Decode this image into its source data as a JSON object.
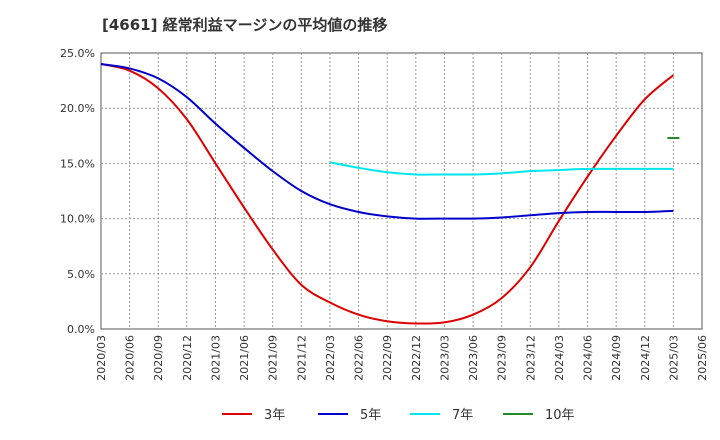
{
  "title": "[4661]  経常利益マージンの平均値の推移",
  "chart_data": {
    "type": "line",
    "title": "[4661]  経常利益マージンの平均値の推移",
    "xlabel": "",
    "ylabel": "",
    "ylim": [
      0,
      25
    ],
    "grid": true,
    "legend_position": "bottom",
    "x": [
      "2020/03",
      "2020/06",
      "2020/09",
      "2020/12",
      "2021/03",
      "2021/06",
      "2021/09",
      "2021/12",
      "2022/03",
      "2022/06",
      "2022/09",
      "2022/12",
      "2023/03",
      "2023/06",
      "2023/09",
      "2023/12",
      "2024/03",
      "2024/06",
      "2024/09",
      "2024/12",
      "2025/03",
      "2025/06"
    ],
    "y_ticks": [
      "0.0%",
      "5.0%",
      "10.0%",
      "15.0%",
      "20.0%",
      "25.0%"
    ],
    "series": [
      {
        "name": "3年",
        "color": "#dd0000",
        "values": [
          24.0,
          23.4,
          21.8,
          19.0,
          15.0,
          11.0,
          7.2,
          4.0,
          2.4,
          1.3,
          0.7,
          0.5,
          0.6,
          1.3,
          2.8,
          5.6,
          9.8,
          13.8,
          17.5,
          20.8,
          23.0,
          null
        ]
      },
      {
        "name": "5年",
        "color": "#0000cc",
        "values": [
          24.0,
          23.6,
          22.7,
          21.0,
          18.6,
          16.4,
          14.3,
          12.5,
          11.3,
          10.6,
          10.2,
          10.0,
          10.0,
          10.0,
          10.1,
          10.3,
          10.5,
          10.6,
          10.6,
          10.6,
          10.7,
          null
        ]
      },
      {
        "name": "7年",
        "color": "#00e5ee",
        "values": [
          null,
          null,
          null,
          null,
          null,
          null,
          null,
          null,
          15.1,
          14.6,
          14.2,
          14.0,
          14.0,
          14.0,
          14.1,
          14.3,
          14.4,
          14.5,
          14.5,
          14.5,
          14.5,
          null
        ]
      },
      {
        "name": "10年",
        "color": "#228b22",
        "values": [
          null,
          null,
          null,
          null,
          null,
          null,
          null,
          null,
          null,
          null,
          null,
          null,
          null,
          null,
          null,
          null,
          null,
          null,
          null,
          null,
          17.3,
          null
        ]
      }
    ]
  }
}
